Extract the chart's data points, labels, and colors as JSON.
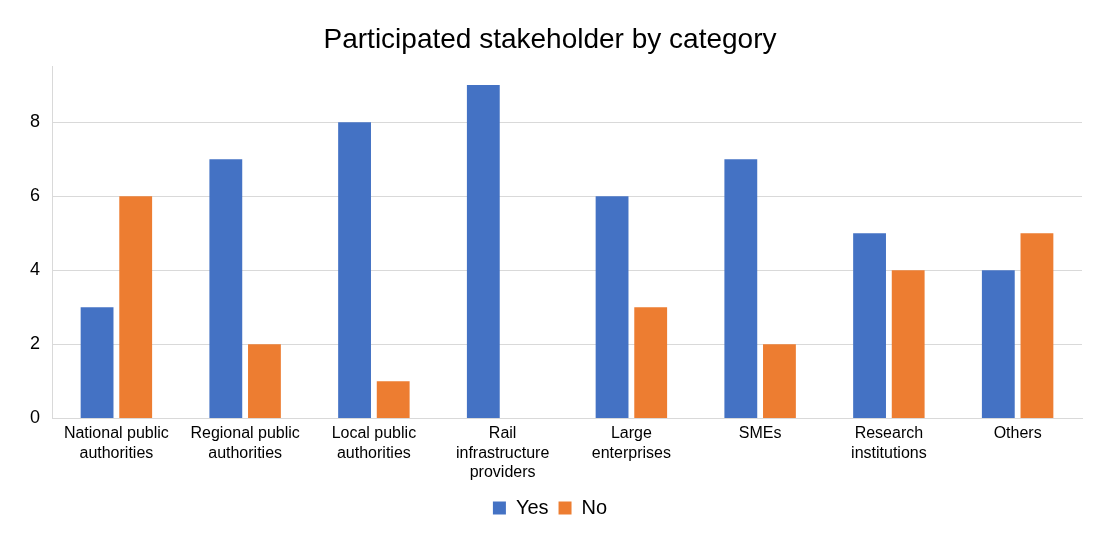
{
  "chart_data": {
    "type": "bar",
    "title": "Participated stakeholder by category",
    "categories": [
      "National public authorities",
      "Regional public authorities",
      "Local public authorities",
      "Rail infrastructure providers",
      "Large enterprises",
      "SMEs",
      "Research institutions",
      "Others"
    ],
    "series": [
      {
        "name": "Yes",
        "color": "#4472c4",
        "values": [
          3,
          7,
          8,
          9,
          6,
          7,
          5,
          4
        ]
      },
      {
        "name": "No",
        "color": "#ed7d31",
        "values": [
          6,
          2,
          1,
          0,
          3,
          2,
          4,
          5
        ]
      }
    ],
    "ylim": [
      0,
      9.5
    ],
    "yticks": [
      0,
      2,
      4,
      6,
      8
    ],
    "grid": "y",
    "legend": "bottom"
  }
}
